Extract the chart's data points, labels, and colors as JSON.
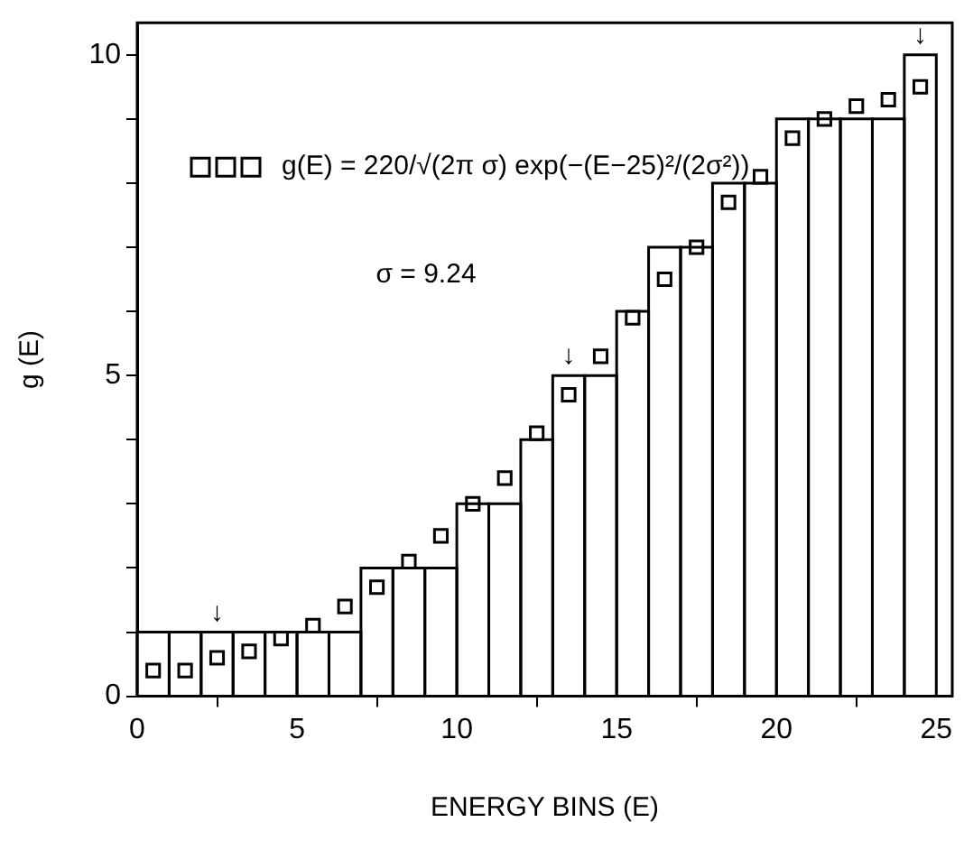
{
  "chart_data": {
    "type": "histogram",
    "xlabel": "ENERGY BINS (E)",
    "ylabel": "g (E)",
    "bins": [
      0,
      1,
      2,
      3,
      4,
      5,
      6,
      7,
      8,
      9,
      10,
      11,
      12,
      13,
      14,
      15,
      16,
      17,
      18,
      19,
      20,
      21,
      22,
      23,
      24,
      25
    ],
    "series": [
      {
        "color": "#ffffff",
        "values": [
          1,
          1,
          1,
          1,
          1,
          1,
          1,
          2,
          2,
          2,
          3,
          3,
          4,
          5,
          5,
          6,
          7,
          7,
          8,
          8,
          9,
          9,
          9,
          9,
          10
        ]
      },
      {
        "type": "scatter",
        "name": "g(E) = 220/√(2π σ) exp(−(E−25)²/(2σ²))",
        "color": "#000000",
        "x": [
          0.5,
          1.5,
          2.5,
          3.5,
          4.5,
          5.5,
          6.5,
          7.5,
          8.5,
          9.5,
          10.5,
          11.5,
          12.5,
          13.5,
          14.5,
          15.5,
          16.5,
          17.5,
          18.5,
          19.5,
          20.5,
          21.5,
          22.5,
          23.5,
          24.5
        ],
        "values": [
          0.4,
          0.4,
          0.6,
          0.7,
          0.9,
          1.1,
          1.4,
          1.7,
          2.1,
          2.5,
          3.0,
          3.4,
          4.1,
          4.7,
          5.3,
          5.9,
          6.5,
          7.0,
          7.7,
          8.1,
          8.7,
          9.0,
          9.2,
          9.3,
          9.5
        ]
      }
    ],
    "marker": "square",
    "legend": "top left",
    "grid": false,
    "xlim": [
      0,
      25.5
    ],
    "xticks": [
      0,
      5,
      10,
      15,
      20,
      25
    ],
    "ylim": [
      0,
      10.5
    ],
    "yticks": [
      0,
      {
        "value": 1,
        "label": null
      },
      {
        "value": 2,
        "label": null
      },
      {
        "value": 3,
        "label": null
      },
      {
        "value": 4,
        "label": null
      },
      5,
      {
        "value": 6,
        "label": null
      },
      {
        "value": 7,
        "label": null
      },
      {
        "value": 8,
        "label": null
      },
      {
        "value": 9,
        "label": null
      },
      10
    ],
    "annotations": [
      "σ = 9.24",
      {
        "text": "↓",
        "x": 2.5,
        "y": 1
      },
      {
        "text": "↓",
        "x": 13.5,
        "y": 5
      },
      {
        "text": "↓",
        "x": 24.5,
        "y": 10
      }
    ]
  }
}
